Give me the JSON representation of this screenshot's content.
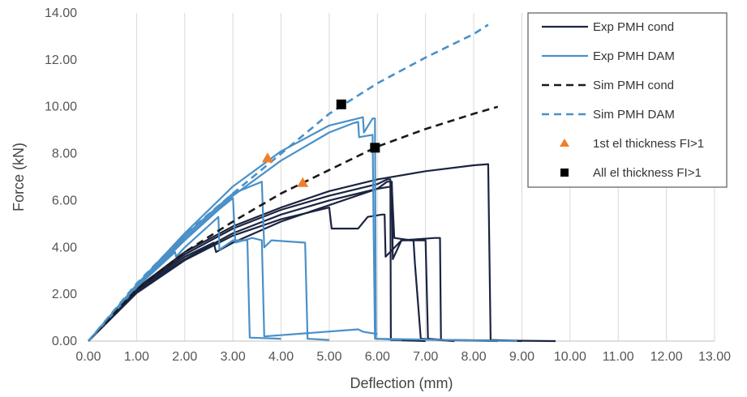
{
  "chart_data": {
    "type": "line",
    "xlabel": "Deflection (mm)",
    "ylabel": "Force (kN)",
    "xlim": [
      0,
      13
    ],
    "ylim": [
      0,
      14
    ],
    "x_ticks": [
      "0.00",
      "1.00",
      "2.00",
      "3.00",
      "4.00",
      "5.00",
      "6.00",
      "7.00",
      "8.00",
      "9.00",
      "10.00",
      "11.00",
      "12.00",
      "13.00"
    ],
    "y_ticks": [
      "0.00",
      "2.00",
      "4.00",
      "6.00",
      "8.00",
      "10.00",
      "12.00",
      "14.00"
    ],
    "grid": "vertical",
    "legend_position": "top-right",
    "series": [
      {
        "name": "Exp PMH cond",
        "color": "#1b2440",
        "style": "solid",
        "curves": [
          [
            [
              0,
              0
            ],
            [
              1,
              2.1
            ],
            [
              2,
              3.5
            ],
            [
              3,
              4.6
            ],
            [
              4,
              5.4
            ],
            [
              5,
              6.0
            ],
            [
              6,
              6.5
            ],
            [
              6.3,
              6.6
            ],
            [
              6.35,
              4.4
            ],
            [
              6.7,
              4.3
            ],
            [
              7.0,
              4.3
            ],
            [
              7.05,
              0.1
            ],
            [
              7.4,
              0.05
            ],
            [
              9.7,
              0
            ]
          ],
          [
            [
              0,
              0
            ],
            [
              1,
              2.15
            ],
            [
              2,
              3.6
            ],
            [
              2.6,
              4.2
            ],
            [
              2.65,
              3.8
            ],
            [
              3,
              4.2
            ],
            [
              4,
              5.1
            ],
            [
              5,
              5.8
            ],
            [
              6,
              6.5
            ],
            [
              6.2,
              6.8
            ],
            [
              6.3,
              6.8
            ],
            [
              6.32,
              3.5
            ],
            [
              6.5,
              4.3
            ],
            [
              7.2,
              4.4
            ],
            [
              7.3,
              4.4
            ],
            [
              7.32,
              0.05
            ],
            [
              8.5,
              0
            ]
          ],
          [
            [
              0,
              0
            ],
            [
              1,
              2.2
            ],
            [
              2,
              3.7
            ],
            [
              3,
              4.8
            ],
            [
              4,
              5.6
            ],
            [
              5,
              6.2
            ],
            [
              6,
              6.7
            ],
            [
              6.2,
              6.9
            ],
            [
              6.27,
              6.9
            ],
            [
              6.28,
              0.05
            ],
            [
              7.0,
              0
            ]
          ],
          [
            [
              0,
              0
            ],
            [
              1,
              2.05
            ],
            [
              2,
              3.45
            ],
            [
              3,
              4.5
            ],
            [
              4,
              5.2
            ],
            [
              5,
              5.7
            ],
            [
              5.05,
              4.8
            ],
            [
              5.6,
              4.8
            ],
            [
              5.8,
              5.3
            ],
            [
              6.1,
              5.4
            ],
            [
              6.15,
              5.4
            ],
            [
              6.17,
              3.6
            ],
            [
              6.5,
              4.3
            ],
            [
              6.75,
              4.3
            ],
            [
              6.78,
              3.3
            ],
            [
              6.9,
              0.1
            ],
            [
              7.6,
              0
            ]
          ],
          [
            [
              0,
              0
            ],
            [
              1,
              2.25
            ],
            [
              2,
              3.8
            ],
            [
              3,
              4.9
            ],
            [
              4,
              5.7
            ],
            [
              5,
              6.4
            ],
            [
              6,
              6.9
            ],
            [
              7,
              7.25
            ],
            [
              8,
              7.5
            ],
            [
              8.3,
              7.55
            ],
            [
              8.35,
              0.05
            ],
            [
              9.0,
              0
            ]
          ]
        ]
      },
      {
        "name": "Exp PMH DAM",
        "color": "#4a90c8",
        "style": "solid",
        "curves": [
          [
            [
              0,
              0
            ],
            [
              1,
              2.3
            ],
            [
              1.8,
              3.8
            ],
            [
              1.82,
              3.6
            ],
            [
              2,
              4.0
            ],
            [
              2.7,
              5.3
            ],
            [
              2.72,
              3.9
            ],
            [
              3,
              4.3
            ],
            [
              3.3,
              4.3
            ],
            [
              3.35,
              0.15
            ],
            [
              4.0,
              0.1
            ]
          ],
          [
            [
              0,
              0
            ],
            [
              1,
              2.3
            ],
            [
              2,
              4.3
            ],
            [
              2.7,
              5.6
            ],
            [
              3,
              6.1
            ],
            [
              3.05,
              4.2
            ],
            [
              3.4,
              4.4
            ],
            [
              3.6,
              4.3
            ],
            [
              3.65,
              0.2
            ],
            [
              5.6,
              0.5
            ],
            [
              5.7,
              0.4
            ],
            [
              6.0,
              0.3
            ]
          ],
          [
            [
              0,
              0
            ],
            [
              1,
              2.4
            ],
            [
              2,
              4.5
            ],
            [
              3,
              6.3
            ],
            [
              3.6,
              6.8
            ],
            [
              3.65,
              4.0
            ],
            [
              3.8,
              4.3
            ],
            [
              4.5,
              4.2
            ],
            [
              4.55,
              0.1
            ],
            [
              5.0,
              0.05
            ]
          ],
          [
            [
              0,
              0
            ],
            [
              1,
              2.4
            ],
            [
              2,
              4.6
            ],
            [
              3,
              6.6
            ],
            [
              4,
              8.1
            ],
            [
              5,
              9.2
            ],
            [
              5.7,
              9.55
            ],
            [
              5.72,
              8.9
            ],
            [
              5.9,
              9.5
            ],
            [
              5.95,
              9.5
            ],
            [
              5.97,
              0.1
            ],
            [
              6.5,
              0.05
            ]
          ],
          [
            [
              0,
              0
            ],
            [
              1,
              2.35
            ],
            [
              2,
              4.4
            ],
            [
              3,
              6.2
            ],
            [
              4,
              7.7
            ],
            [
              5,
              8.9
            ],
            [
              5.5,
              9.3
            ],
            [
              5.6,
              9.35
            ],
            [
              5.62,
              8.7
            ],
            [
              5.9,
              8.8
            ],
            [
              5.92,
              4.9
            ],
            [
              5.95,
              0.1
            ],
            [
              8.9,
              0
            ]
          ]
        ]
      },
      {
        "name": "Sim PMH cond",
        "color": "#1a1a1a",
        "style": "dashed",
        "curves": [
          [
            [
              0,
              0
            ],
            [
              1,
              2.2
            ],
            [
              2,
              3.8
            ],
            [
              3,
              5.1
            ],
            [
              4,
              6.3
            ],
            [
              5,
              7.3
            ],
            [
              6,
              8.3
            ],
            [
              7,
              9.05
            ],
            [
              8,
              9.7
            ],
            [
              8.5,
              10.0
            ]
          ]
        ]
      },
      {
        "name": "Sim PMH DAM",
        "color": "#4a90c8",
        "style": "dashed",
        "curves": [
          [
            [
              0,
              0
            ],
            [
              1,
              2.45
            ],
            [
              2,
              4.55
            ],
            [
              3,
              6.3
            ],
            [
              4,
              8.0
            ],
            [
              5,
              9.7
            ],
            [
              6,
              11.0
            ],
            [
              7,
              12.1
            ],
            [
              8,
              13.1
            ],
            [
              8.3,
              13.5
            ]
          ]
        ]
      },
      {
        "name": "1st el thickness FI>1",
        "color": "#f07f2a",
        "marker": "triangle",
        "points": [
          [
            3.72,
            7.8
          ],
          [
            4.45,
            6.75
          ]
        ]
      },
      {
        "name": "All el thickness FI>1",
        "color": "#000000",
        "marker": "square",
        "points": [
          [
            5.25,
            10.1
          ],
          [
            5.95,
            8.25
          ]
        ]
      }
    ]
  }
}
